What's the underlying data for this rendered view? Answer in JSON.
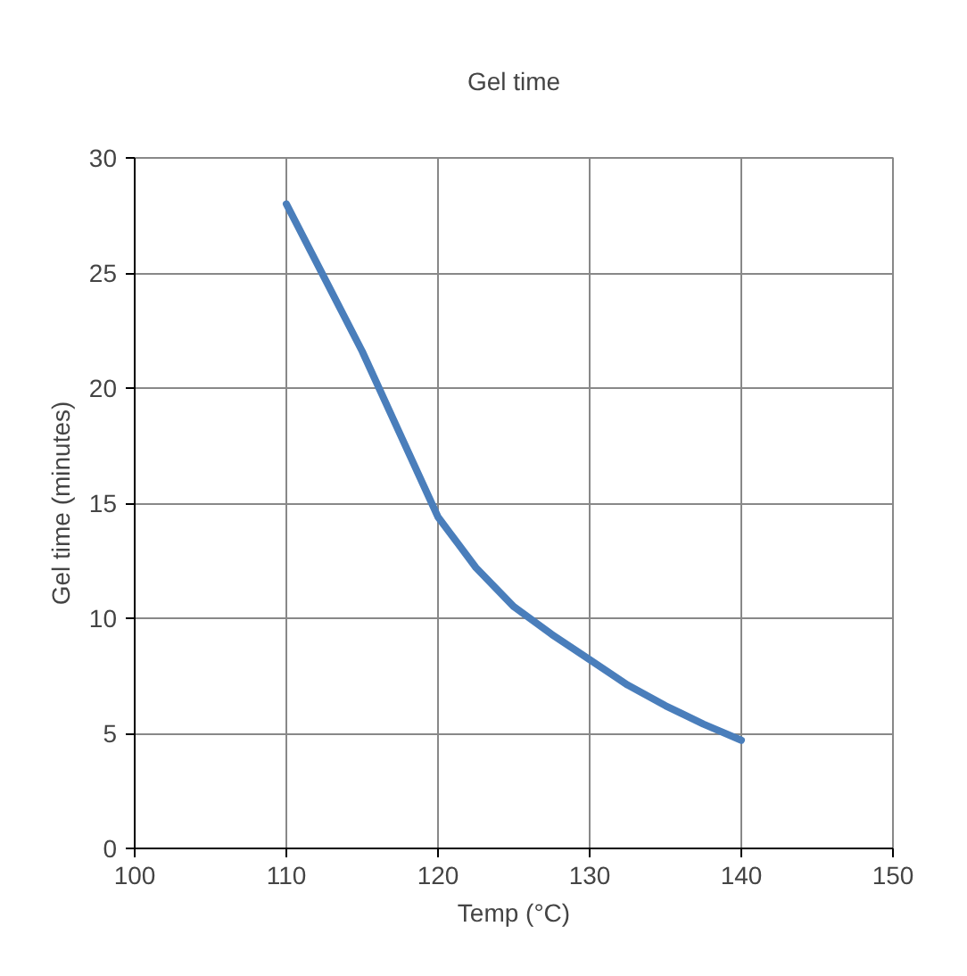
{
  "chart_data": {
    "type": "line",
    "title": "Gel time",
    "xlabel": "Temp (°C)",
    "ylabel": "Gel time (minutes)",
    "x": [
      110,
      112.5,
      115,
      117.5,
      120,
      122.5,
      125,
      127.5,
      130,
      132.5,
      135,
      137.5,
      140
    ],
    "series": [
      {
        "color": "#4a7ebb",
        "values": [
          28,
          24.8,
          21.6,
          18,
          14.4,
          12.2,
          10.5,
          9.3,
          8.2,
          7.1,
          6.2,
          5.4,
          4.7
        ]
      }
    ],
    "xlim": [
      100,
      150
    ],
    "xticks": [
      100,
      110,
      120,
      130,
      140,
      150
    ],
    "ylim": [
      0,
      30
    ],
    "yticks": [
      0,
      5,
      10,
      15,
      20,
      25,
      30
    ],
    "grid": true,
    "marker": "none",
    "line_style": "solid"
  }
}
